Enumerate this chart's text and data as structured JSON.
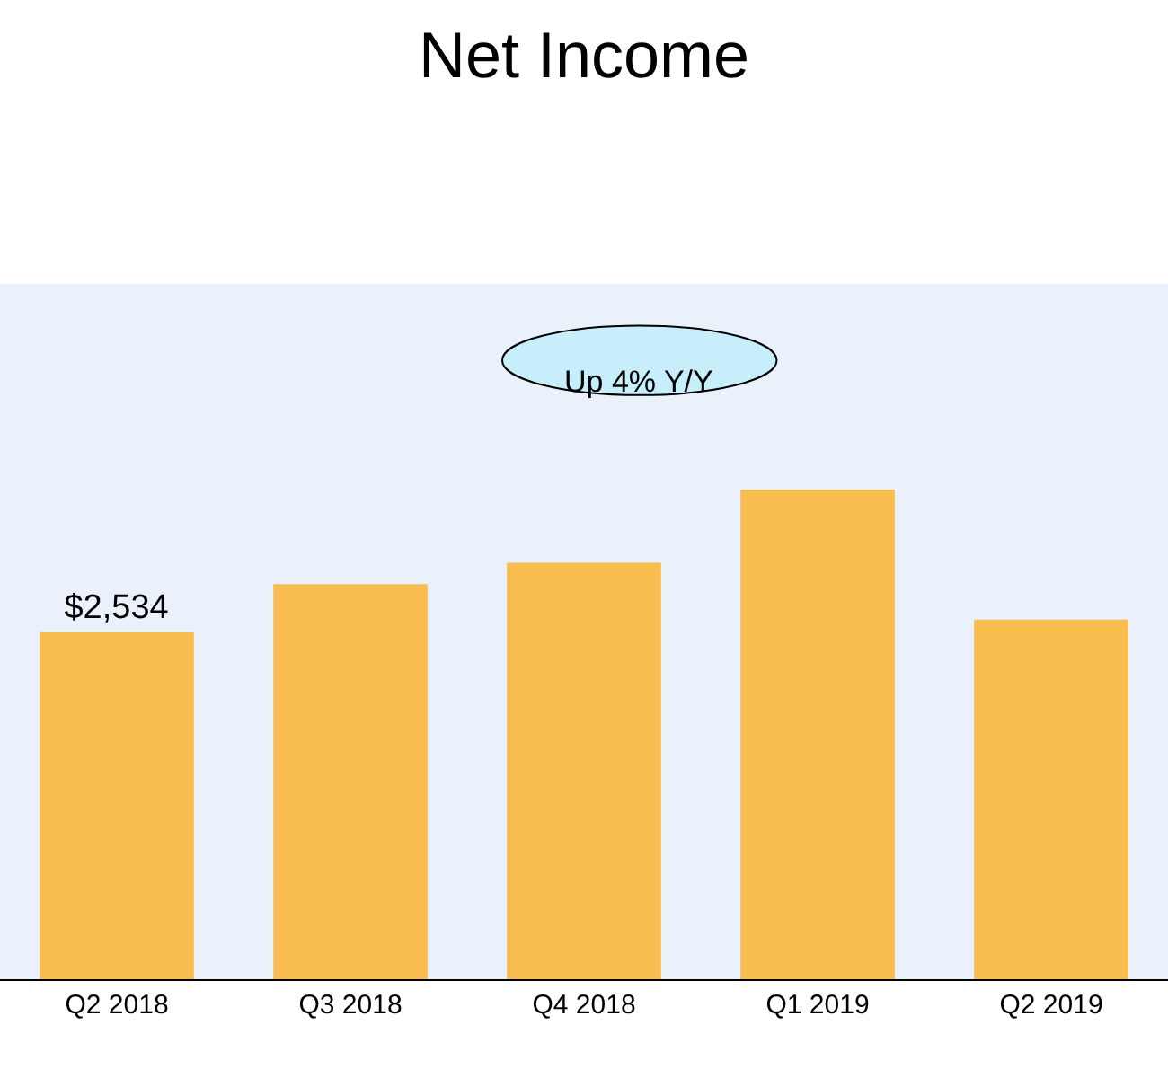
{
  "chart_data": {
    "type": "bar",
    "title": "Net Income",
    "categories": [
      "Q2 2018",
      "Q3 2018",
      "Q4 2018",
      "Q1 2019",
      "Q2 2019"
    ],
    "values": [
      2534,
      2885,
      3040,
      3575,
      2625
    ],
    "value_labels": [
      "$2,534",
      null,
      null,
      null,
      null
    ],
    "color": "#f8bd4e",
    "annotations": [
      "Up 4% Y/Y"
    ]
  }
}
